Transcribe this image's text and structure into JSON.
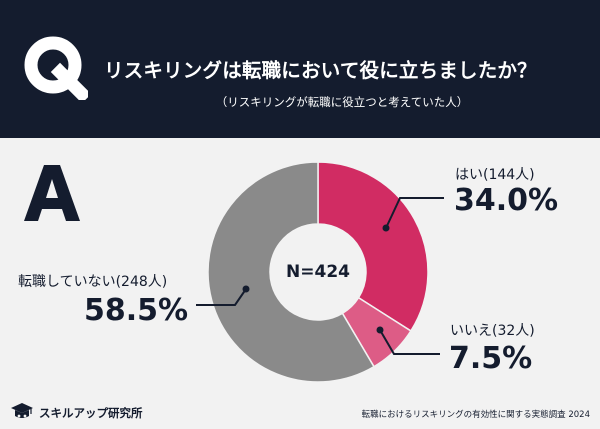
{
  "header": {
    "q_letter": "Q",
    "title": "リスキリングは転職において役に立ちましたか？",
    "subtitle": "（リスキリングが転職に役立つと考えていた人）",
    "background_color": "#141c2e"
  },
  "answer": {
    "a_letter": "A"
  },
  "chart_data": {
    "type": "pie",
    "style": "donut",
    "title": "リスキリングは転職において役に立ちましたか？",
    "subtitle": "（リスキリングが転職に役立つと考えていた人）",
    "total_label": "N=424",
    "total": 424,
    "slices": [
      {
        "name": "はい",
        "count_label": "はい(144人)",
        "count": 144,
        "percent": 34.0,
        "percent_label": "34.0%",
        "color": "#d12c63"
      },
      {
        "name": "いいえ",
        "count_label": "いいえ(32人)",
        "count": 32,
        "percent": 7.5,
        "percent_label": "7.5%",
        "color": "#dd5c86"
      },
      {
        "name": "転職していない",
        "count_label": "転職していない(248人)",
        "count": 248,
        "percent": 58.5,
        "percent_label": "58.5%",
        "color": "#8a8a8a"
      }
    ]
  },
  "footer": {
    "brand": "スキルアップ研究所",
    "source": "転職におけるリスキリングの有効性に関する実態調査 2024"
  }
}
